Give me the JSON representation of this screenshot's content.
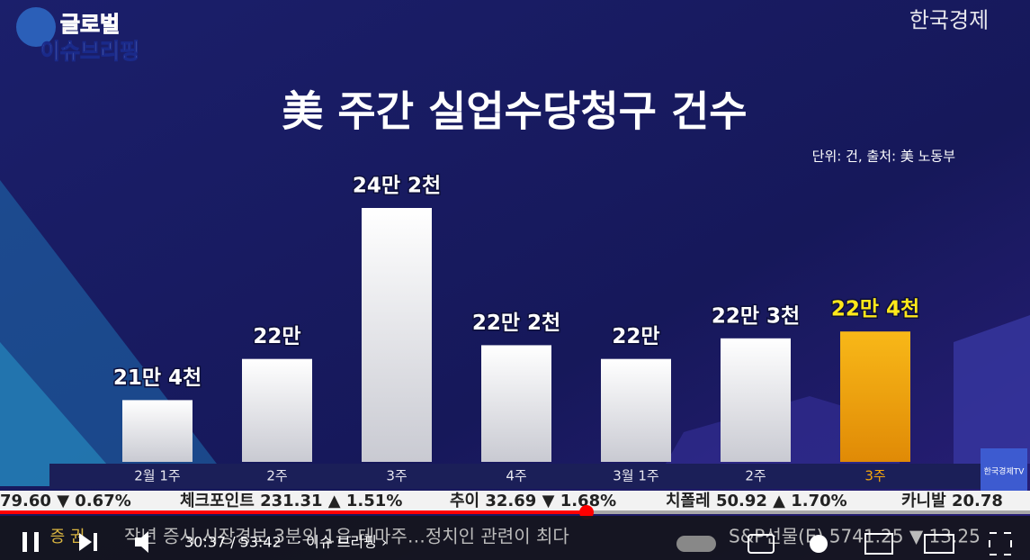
{
  "chart_data": {
    "type": "bar",
    "title": "美 주간 실업수당청구 건수",
    "subtitle": "단위: 건, 출처: 美 노동부",
    "categories": [
      "2월 1주",
      "2주",
      "3주",
      "4주",
      "3월 1주",
      "2주",
      "3주"
    ],
    "values": [
      214000,
      220000,
      242000,
      222000,
      220000,
      223000,
      224000
    ],
    "value_labels": [
      "21만 4천",
      "22만",
      "24만 2천",
      "22만 2천",
      "22만",
      "22만 3천",
      "22만 4천"
    ],
    "color": "#f4f4f6",
    "highlight_color": "#f5a60c",
    "highlight_index": 6,
    "ylim": [
      205000,
      242000
    ]
  },
  "branding": {
    "show_top": "글로벌",
    "show_bottom": "이슈브리핑",
    "broadcaster": "한국경제",
    "badge": "한국경제TV"
  },
  "ticker": [
    "79.60 ▼ 0.67%",
    "체크포인트 231.31 ▲ 1.51%",
    "추이 32.69 ▼ 1.68%",
    "치폴레 50.92 ▲ 1.70%",
    "카니발 20.78"
  ],
  "news": {
    "section": "증 권",
    "headline": "작년 증시 시장경보 3분의 1은 테마주…정치인 관련이 최다",
    "index": "S&P선물(E) 5741.25 ▼ 13.25"
  },
  "player": {
    "time": "30:37 / 53:42",
    "chapter": "· 이슈 브리핑 ›"
  }
}
